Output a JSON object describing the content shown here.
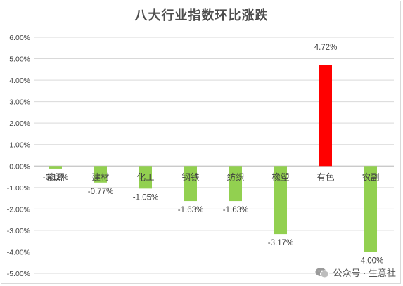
{
  "chart_data": {
    "type": "bar",
    "title": "八大行业指数环比涨跌",
    "categories": [
      "能源",
      "建材",
      "化工",
      "钢铁",
      "纺织",
      "橡塑",
      "有色",
      "农副"
    ],
    "values": [
      -0.12,
      -0.77,
      -1.05,
      -1.63,
      -1.63,
      -3.17,
      4.72,
      -4.0
    ],
    "value_labels": [
      "-0.12%",
      "-0.77%",
      "-1.05%",
      "-1.63%",
      "-1.63%",
      "-3.17%",
      "4.72%",
      "-4.00%"
    ],
    "ylim": [
      -5,
      6
    ],
    "yticks": [
      "6.00%",
      "5.00%",
      "4.00%",
      "3.00%",
      "2.00%",
      "1.00%",
      "0.00%",
      "-1.00%",
      "-2.00%",
      "-3.00%",
      "-4.00%",
      "-5.00%"
    ],
    "xlabel": "",
    "ylabel": "",
    "grid": true,
    "colors": {
      "positive": "#ff0000",
      "negative": "#92d050",
      "grid": "#d9d9d9",
      "text": "#404040"
    }
  },
  "watermark": {
    "text": "公众号 · 生意社",
    "icon": "wechat-icon"
  }
}
